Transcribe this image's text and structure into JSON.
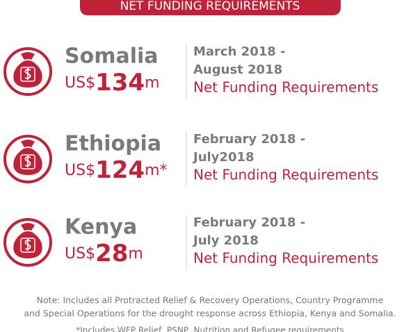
{
  "header": {
    "title": "NET FUNDING REQUIREMENTS"
  },
  "items": [
    {
      "country": "Somalia",
      "prefix": "US$",
      "amount": 134,
      "suffix": "m",
      "period_start": "March 2018 -",
      "period_end": "August 2018",
      "label": "Net Funding Requirements"
    },
    {
      "country": "Ethiopia",
      "prefix": "US$",
      "amount": 124,
      "suffix": "m*",
      "period_start": "February 2018 -",
      "period_end": "July2018",
      "label": "Net Funding Requirements"
    },
    {
      "country": "Kenya",
      "prefix": "US$",
      "amount": 28,
      "suffix": "m",
      "period_start": "February 2018 -",
      "period_end": "July 2018",
      "label": "Net Funding Requirements"
    }
  ],
  "note": {
    "lines": [
      "Note: Includes all Protracted Relief & Recovery Operations, Country Programme",
      "and Special Operations for the drought response across Ethiopia, Kenya and Somalia."
    ],
    "footnote": "*Includes WFP Relief, PSNP, Nutrition and Refugee requirements"
  }
}
